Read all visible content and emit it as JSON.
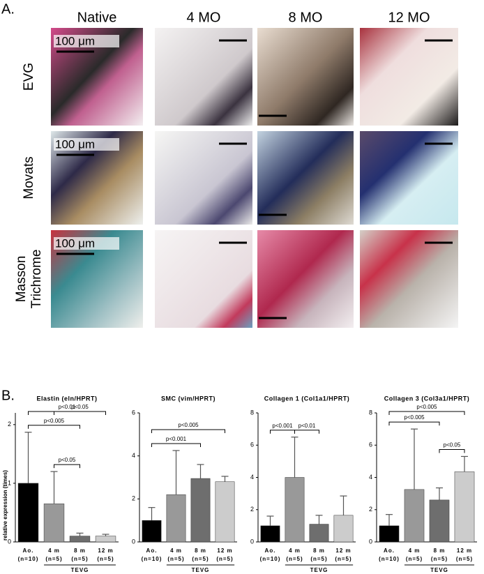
{
  "panel_a": {
    "label": "A.",
    "columns": [
      "Native",
      "4 MO",
      "8 MO",
      "12 MO"
    ],
    "rows": [
      [
        "EVG"
      ],
      [
        "Movats"
      ],
      [
        "Masson",
        "Trichrome"
      ]
    ],
    "scale_label": "100 μm"
  },
  "panel_b_label": "B.",
  "chart_data": [
    {
      "type": "bar",
      "title": "Elastin (eln/HPRT)",
      "ylabel": "relative expression (times)",
      "categories": [
        "Ao.",
        "4 m",
        "8 m",
        "12 m"
      ],
      "n_labels": [
        "(n=10)",
        "(n=5)",
        "(n=5)",
        "(n=5)"
      ],
      "group_label": "TEVG",
      "values": [
        1.0,
        0.65,
        0.1,
        0.1
      ],
      "errors": [
        0.87,
        0.55,
        0.05,
        0.03
      ],
      "colors": [
        "#000000",
        "#999999",
        "#6e6e6e",
        "#cccccc"
      ],
      "ylim": [
        0,
        2.2
      ],
      "yticks": [
        0,
        1,
        2
      ],
      "significance": [
        {
          "label": "p<0.01",
          "between": [
            "Ao.",
            "12 m"
          ]
        },
        {
          "label": "p<0.005",
          "between": [
            "Ao.",
            "8 m"
          ]
        },
        {
          "label": "p<0.05",
          "between": [
            "4 m",
            "12 m"
          ]
        },
        {
          "label": "p<0.05",
          "between": [
            "4 m",
            "8 m"
          ]
        }
      ]
    },
    {
      "type": "bar",
      "title": "SMC (vim/HPRT)",
      "categories": [
        "Ao.",
        "4 m",
        "8 m",
        "12 m"
      ],
      "n_labels": [
        "(n=10)",
        "(n=5)",
        "(n=5)",
        "(n=5)"
      ],
      "group_label": "TEVG",
      "values": [
        1.0,
        2.2,
        2.95,
        2.8
      ],
      "errors": [
        0.6,
        2.05,
        0.65,
        0.25
      ],
      "colors": [
        "#000000",
        "#999999",
        "#6e6e6e",
        "#cccccc"
      ],
      "ylim": [
        0,
        6
      ],
      "yticks": [
        0,
        2,
        4,
        6
      ],
      "significance": [
        {
          "label": "p<0.005",
          "between": [
            "Ao.",
            "12 m"
          ]
        },
        {
          "label": "p<0.001",
          "between": [
            "Ao.",
            "8 m"
          ]
        }
      ]
    },
    {
      "type": "bar",
      "title": "Collagen 1 (Col1a1/HPRT)",
      "categories": [
        "Ao.",
        "4 m",
        "8 m",
        "12 m"
      ],
      "n_labels": [
        "(n=10)",
        "(n=5)",
        "(n=5)",
        "(n=5)"
      ],
      "group_label": "TEVG",
      "values": [
        1.0,
        4.0,
        1.1,
        1.65
      ],
      "errors": [
        0.6,
        2.5,
        0.55,
        1.2
      ],
      "colors": [
        "#000000",
        "#999999",
        "#6e6e6e",
        "#cccccc"
      ],
      "ylim": [
        0,
        8
      ],
      "yticks": [
        0,
        2,
        4,
        6,
        8
      ],
      "significance": [
        {
          "label": "p<0.001",
          "between": [
            "Ao.",
            "4 m"
          ]
        },
        {
          "label": "p<0.01",
          "between": [
            "4 m",
            "8 m"
          ]
        }
      ]
    },
    {
      "type": "bar",
      "title": "Collagen 3 (Col3a1/HPRT)",
      "categories": [
        "Ao.",
        "4 m",
        "8 m",
        "12 m"
      ],
      "n_labels": [
        "(n=10)",
        "(n=5)",
        "(n=5)",
        "(n=5)"
      ],
      "group_label": "TEVG",
      "values": [
        1.0,
        3.25,
        2.6,
        4.35
      ],
      "errors": [
        0.7,
        3.75,
        0.75,
        0.95
      ],
      "colors": [
        "#000000",
        "#999999",
        "#6e6e6e",
        "#cccccc"
      ],
      "ylim": [
        0,
        8
      ],
      "yticks": [
        0,
        2,
        4,
        6,
        8
      ],
      "significance": [
        {
          "label": "p<0.005",
          "between": [
            "Ao.",
            "12 m"
          ]
        },
        {
          "label": "p<0.005",
          "between": [
            "Ao.",
            "8 m"
          ]
        },
        {
          "label": "p<0.05",
          "between": [
            "8 m",
            "12 m"
          ]
        }
      ]
    }
  ]
}
